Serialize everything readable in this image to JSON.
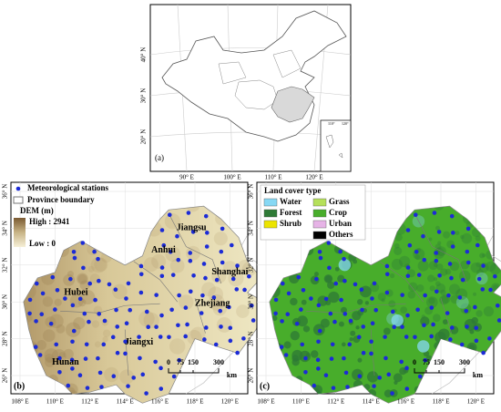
{
  "panel_a": {
    "label": "(a)",
    "lat_labels": [
      "40° N",
      "30° N",
      "20° N"
    ],
    "lon_labels": [
      "90° E",
      "100° E",
      "110° E",
      "120° E"
    ],
    "inset_labels": [
      "110°",
      "120°"
    ]
  },
  "panel_b": {
    "label": "(b)",
    "legend": {
      "stations": "Meteorological stations",
      "boundary": "Province boundary",
      "dem_title": "DEM (m)",
      "high": "High : 2941",
      "low": "Low : 0"
    },
    "provinces": [
      "Jiangsu",
      "Anhui",
      "Shanghai",
      "Hubei",
      "Zhejiang",
      "Jiangxi",
      "Hunan"
    ],
    "scale": [
      "0",
      "75",
      "150",
      "300"
    ],
    "scale_unit": "km"
  },
  "panel_c": {
    "label": "(c)",
    "legend_title": "Land cover type",
    "classes": [
      {
        "name": "Water",
        "color": "#86d8f4"
      },
      {
        "name": "Grass",
        "color": "#b5e05a"
      },
      {
        "name": "Forest",
        "color": "#2e7a36"
      },
      {
        "name": "Crop",
        "color": "#48ad2b"
      },
      {
        "name": "Shrub",
        "color": "#ece400"
      },
      {
        "name": "Urban",
        "color": "#e6b3e6"
      },
      {
        "name": "Others",
        "color": "#000000"
      }
    ],
    "scale": [
      "0",
      "75",
      "150",
      "300"
    ],
    "scale_unit": "km"
  },
  "lat_labels": [
    "36° N",
    "34° N",
    "32° N",
    "30° N",
    "28° N",
    "26° N"
  ],
  "lon_labels": [
    "108° E",
    "110° E",
    "112° E",
    "114° E",
    "116° E",
    "118° E",
    "120° E"
  ]
}
